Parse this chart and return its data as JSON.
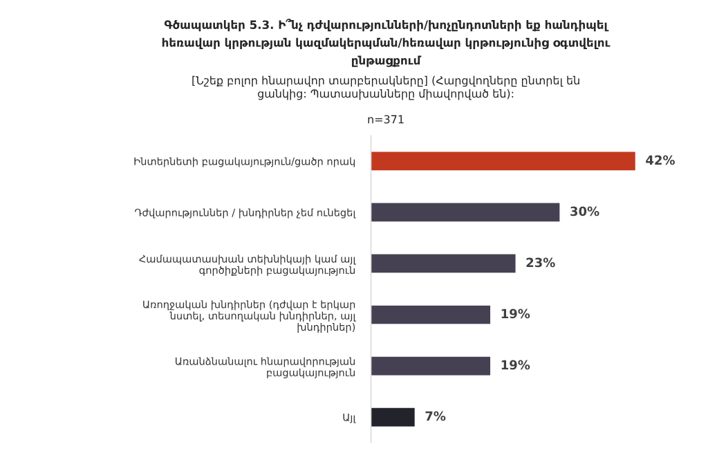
{
  "chart_data": {
    "type": "bar",
    "orientation": "horizontal",
    "title": "Գծապատկեր 5.3. Ի՞նչ դժվարությունների/խոչընդոտների եք հանդիպել\nհեռավար կրթության կազմակերպման/հեռավար կրթությունից օգտվելու\nընթացքում",
    "subtitle": "[Նշեք բոլոր հնարավոր տարբերակները] (Հարցվողները ընտրել են\nցանկից: Պատասխանները միավորված են):",
    "annotations": [
      "n=371"
    ],
    "categories": [
      "Ինտերնետի բացակայություն/ցածր որակ",
      "Դժվարություններ / խնդիրներ չեմ ունեցել",
      "Համապատասխան տեխնիկայի կամ այլ\nգործիքների բացակայություն",
      "Առողջական խնդիրներ (դժվար է երկար\nնստել, տեսողական խնդիրներ, այլ\nխնդիրներ)",
      "Առանձնանալու հնարավորության\nբացակայություն",
      "Այլ"
    ],
    "values": [
      42,
      30,
      23,
      19,
      19,
      7
    ],
    "colors": [
      "#c3391f",
      "#464152",
      "#464152",
      "#464152",
      "#464152",
      "#23232b"
    ],
    "value_labels": [
      "42%",
      "30%",
      "23%",
      "19%",
      "19%",
      "7%"
    ],
    "tick_labels": "y",
    "grid": false,
    "legend": false
  }
}
